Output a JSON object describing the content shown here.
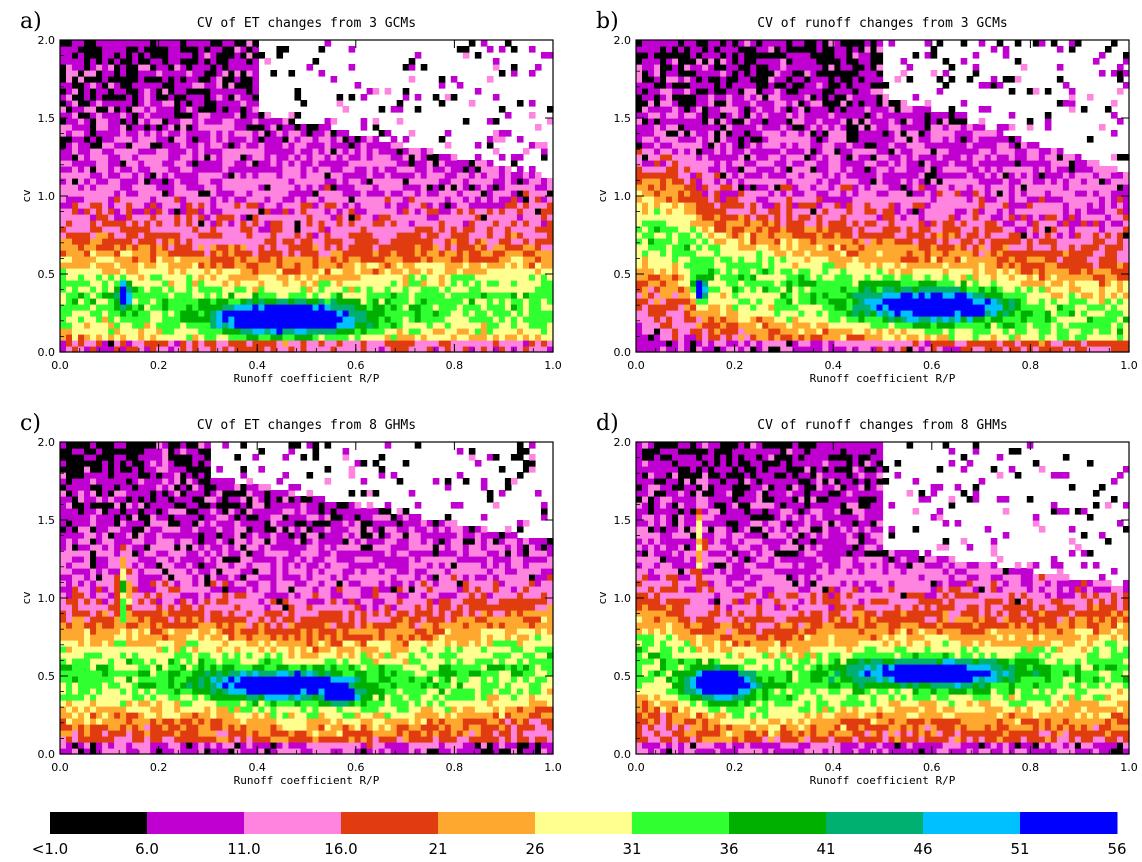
{
  "chart_data": [
    {
      "type": "heatmap",
      "panel": "a)",
      "title": "CV of ET changes from 3 GCMs",
      "xlabel": "Runoff coefficient R/P",
      "ylabel": "cv",
      "xlim": [
        0.0,
        1.0
      ],
      "ylim": [
        0.0,
        2.0
      ],
      "xticks": [
        "0.0",
        "0.2",
        "0.4",
        "0.6",
        "0.8",
        "1.0"
      ],
      "yticks": [
        "0.0",
        "0.5",
        "1.0",
        "1.5",
        "2.0"
      ],
      "ridge": [
        [
          0.05,
          0.35
        ],
        [
          0.13,
          0.33
        ],
        [
          0.3,
          0.26
        ],
        [
          0.5,
          0.23
        ],
        [
          0.7,
          0.28
        ],
        [
          0.9,
          0.32
        ],
        [
          1.0,
          0.3
        ]
      ],
      "hotspots": [
        {
          "x": 0.46,
          "y": 0.22,
          "sx": 0.13,
          "sy": 0.09,
          "peak": 44
        },
        {
          "x": 0.13,
          "y": 0.37,
          "sx": 0.012,
          "sy": 0.08,
          "peak": 34
        }
      ],
      "hidden_region": {
        "x0": 0.45,
        "y0": 1.5,
        "slope": 0.7
      }
    },
    {
      "type": "heatmap",
      "panel": "b)",
      "title": "CV of runoff changes from 3 GCMs",
      "xlabel": "Runoff coefficient R/P",
      "ylabel": "cv",
      "xlim": [
        0.0,
        1.0
      ],
      "ylim": [
        0.0,
        2.0
      ],
      "xticks": [
        "0.0",
        "0.2",
        "0.4",
        "0.6",
        "0.8",
        "1.0"
      ],
      "yticks": [
        "0.0",
        "0.5",
        "1.0",
        "1.5",
        "2.0"
      ],
      "ridge": [
        [
          0.08,
          0.75
        ],
        [
          0.15,
          0.52
        ],
        [
          0.3,
          0.42
        ],
        [
          0.5,
          0.35
        ],
        [
          0.7,
          0.28
        ],
        [
          0.9,
          0.18
        ],
        [
          1.0,
          0.15
        ]
      ],
      "hotspots": [
        {
          "x": 0.6,
          "y": 0.3,
          "sx": 0.14,
          "sy": 0.1,
          "peak": 33
        },
        {
          "x": 0.13,
          "y": 0.4,
          "sx": 0.012,
          "sy": 0.08,
          "peak": 31
        }
      ],
      "hidden_region": {
        "x0": 0.55,
        "y0": 1.6,
        "slope": 1.0
      }
    },
    {
      "type": "heatmap",
      "panel": "c)",
      "title": "CV of ET changes from 8 GHMs",
      "xlabel": "Runoff coefficient R/P",
      "ylabel": "cv",
      "xlim": [
        0.0,
        1.0
      ],
      "ylim": [
        0.0,
        2.0
      ],
      "xticks": [
        "0.0",
        "0.2",
        "0.4",
        "0.6",
        "0.8",
        "1.0"
      ],
      "yticks": [
        "0.0",
        "0.5",
        "1.0",
        "1.5",
        "2.0"
      ],
      "ridge": [
        [
          0.07,
          0.5
        ],
        [
          0.15,
          0.52
        ],
        [
          0.3,
          0.5
        ],
        [
          0.5,
          0.42
        ],
        [
          0.7,
          0.45
        ],
        [
          0.9,
          0.55
        ],
        [
          1.0,
          0.6
        ]
      ],
      "hotspots": [
        {
          "x": 0.45,
          "y": 0.45,
          "sx": 0.15,
          "sy": 0.09,
          "peak": 31
        },
        {
          "x": 0.13,
          "y": 1.05,
          "sx": 0.01,
          "sy": 0.22,
          "peak": 22
        },
        {
          "x": 0.57,
          "y": 0.37,
          "sx": 0.03,
          "sy": 0.04,
          "peak": 38
        }
      ],
      "hidden_region": {
        "x0": 0.35,
        "y0": 1.75,
        "slope": 0.6
      }
    },
    {
      "type": "heatmap",
      "panel": "d)",
      "title": "CV of runoff changes from 8 GHMs",
      "xlabel": "Runoff coefficient R/P",
      "ylabel": "cv",
      "xlim": [
        0.0,
        1.0
      ],
      "ylim": [
        0.0,
        2.0
      ],
      "xticks": [
        "0.0",
        "0.2",
        "0.4",
        "0.6",
        "0.8",
        "1.0"
      ],
      "yticks": [
        "0.0",
        "0.5",
        "1.0",
        "1.5",
        "2.0"
      ],
      "ridge": [
        [
          0.05,
          0.6
        ],
        [
          0.12,
          0.5
        ],
        [
          0.2,
          0.42
        ],
        [
          0.35,
          0.45
        ],
        [
          0.5,
          0.52
        ],
        [
          0.7,
          0.5
        ],
        [
          0.85,
          0.5
        ],
        [
          1.0,
          0.55
        ]
      ],
      "hotspots": [
        {
          "x": 0.17,
          "y": 0.45,
          "sx": 0.06,
          "sy": 0.09,
          "peak": 42
        },
        {
          "x": 0.6,
          "y": 0.52,
          "sx": 0.16,
          "sy": 0.08,
          "peak": 29
        },
        {
          "x": 0.13,
          "y": 1.35,
          "sx": 0.008,
          "sy": 0.22,
          "peak": 20
        }
      ],
      "hidden_region": {
        "x0": 0.55,
        "y0": 1.3,
        "slope": 0.5
      }
    }
  ],
  "colorbar": {
    "colors": [
      "#000000",
      "#c000d0",
      "#ff84e0",
      "#e03c10",
      "#ffa830",
      "#ffff90",
      "#30ff30",
      "#00b000",
      "#00b070",
      "#00c0ff",
      "#0000ff"
    ],
    "labels": [
      "<1.0",
      "6.0",
      "11.0",
      "16.0",
      "21",
      "26",
      "31",
      "36",
      "41",
      "46",
      "51",
      "56"
    ]
  }
}
